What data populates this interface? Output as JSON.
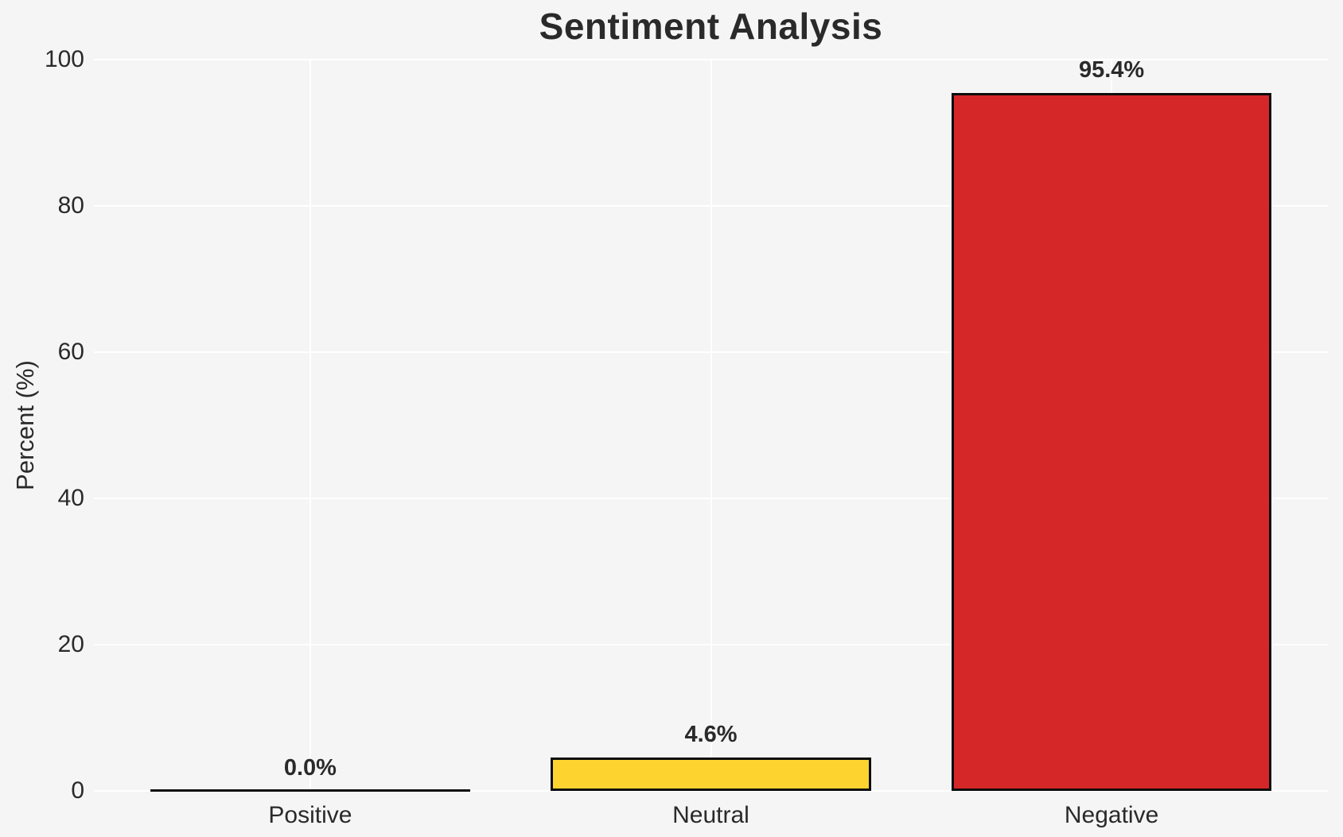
{
  "figure": {
    "background_color": "#f5f5f5",
    "text_color": "#2a2a2a",
    "grid_color": "#ffffff",
    "bar_edge_color": "#0d0d0d"
  },
  "chart_data": {
    "type": "bar",
    "title": "Sentiment Analysis",
    "xlabel": "",
    "ylabel": "Percent (%)",
    "categories": [
      "Positive",
      "Neutral",
      "Negative"
    ],
    "values": [
      0.0,
      4.6,
      95.4
    ],
    "value_labels": [
      "0.0%",
      "4.6%",
      "95.4%"
    ],
    "bar_colors": [
      null,
      "#FDD330",
      "#D62728"
    ],
    "ylim": [
      0,
      100
    ],
    "yticks": [
      0,
      20,
      40,
      60,
      80,
      100
    ],
    "grid": "both",
    "legend_position": "none"
  }
}
